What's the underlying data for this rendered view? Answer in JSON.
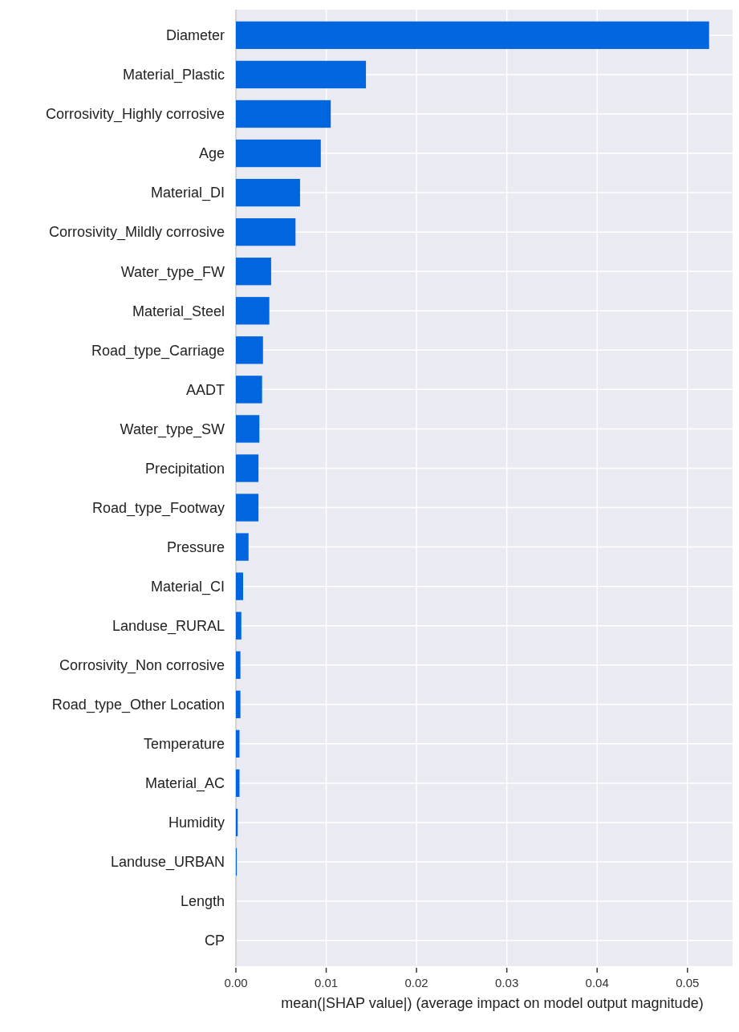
{
  "chart_data": {
    "type": "bar",
    "orientation": "horizontal",
    "xlabel": "mean(|SHAP value|) (average impact on model output magnitude)",
    "categories": [
      "Diameter",
      "Material_Plastic",
      "Corrosivity_Highly corrosive",
      "Age",
      "Material_DI",
      "Corrosivity_Mildly corrosive",
      "Water_type_FW",
      "Material_Steel",
      "Road_type_Carriage",
      "AADT",
      "Water_type_SW",
      "Precipitation",
      "Road_type_Footway",
      "Pressure",
      "Material_CI",
      "Landuse_RURAL",
      "Corrosivity_Non corrosive",
      "Road_type_Other Location",
      "Temperature",
      "Material_AC",
      "Humidity",
      "Landuse_URBAN",
      "Length",
      "CP"
    ],
    "values": [
      0.0524,
      0.0144,
      0.0105,
      0.0094,
      0.0071,
      0.0066,
      0.0039,
      0.0037,
      0.003,
      0.0029,
      0.0026,
      0.0025,
      0.0025,
      0.0014,
      0.0008,
      0.0006,
      0.0005,
      0.0005,
      0.0004,
      0.0004,
      0.0002,
      0.0001,
      0,
      0
    ],
    "color": "#0066e0",
    "xlim": [
      0,
      0.055
    ],
    "xticks": [
      {
        "value": 0,
        "label": "0.00"
      },
      {
        "value": 0.01,
        "label": "0.01"
      },
      {
        "value": 0.02,
        "label": "0.02"
      },
      {
        "value": 0.03,
        "label": "0.03"
      },
      {
        "value": 0.04,
        "label": "0.04"
      },
      {
        "value": 0.05,
        "label": "0.05"
      }
    ],
    "grid": true
  }
}
